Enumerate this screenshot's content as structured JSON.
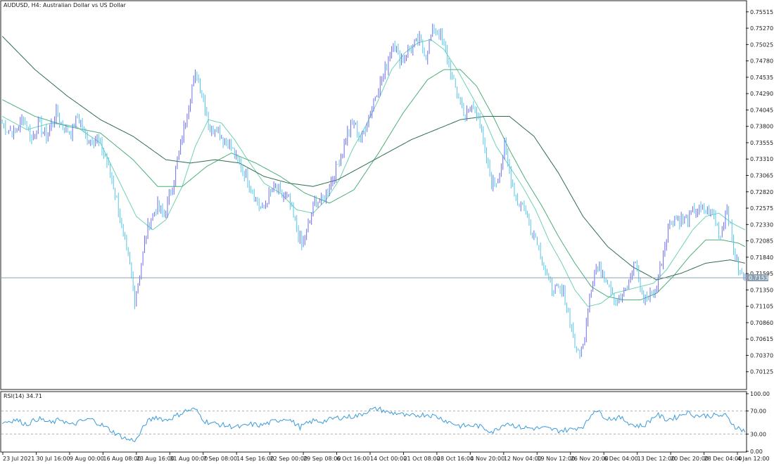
{
  "chart_data": [
    {
      "type": "candlestick",
      "title": "AUDUSD, H4:  Australian Dollar vs US Dollar",
      "ylim": [
        0.6988,
        0.7565
      ],
      "y_ticks": [
        "0.75515",
        "0.75270",
        "0.75025",
        "0.74780",
        "0.74535",
        "0.74290",
        "0.74045",
        "0.73800",
        "0.73555",
        "0.73310",
        "0.73065",
        "0.72820",
        "0.72575",
        "0.72330",
        "0.72085",
        "0.71840",
        "0.71595",
        "0.71350",
        "0.71105",
        "0.70860",
        "0.70615",
        "0.70370",
        "0.70125"
      ],
      "x_ticks": [
        "23 Jul 2021",
        "30 Jul 16:00",
        "9 Aug 00:00",
        "16 Aug 08:00",
        "23 Aug 16:00",
        "31 Aug 00:00",
        "7 Sep 08:00",
        "14 Sep 16:00",
        "22 Sep 00:00",
        "29 Sep 08:00",
        "6 Oct 16:00",
        "14 Oct 00:00",
        "21 Oct 08:00",
        "28 Oct 16:00",
        "4 Nov 20:00",
        "12 Nov 04:00",
        "19 Nov 12:00",
        "26 Nov 20:00",
        "6 Dec 04:00",
        "13 Dec 12:00",
        "20 Dec 20:00",
        "28 Dec 04:00",
        "4 Jan 12:00"
      ],
      "current_price": "0.71532",
      "price_keypoints": [
        [
          0,
          0.7385
        ],
        [
          3,
          0.7375
        ],
        [
          8,
          0.737
        ],
        [
          13,
          0.7395
        ],
        [
          18,
          0.736
        ],
        [
          22,
          0.7385
        ],
        [
          27,
          0.7365
        ],
        [
          33,
          0.74
        ],
        [
          37,
          0.738
        ],
        [
          42,
          0.737
        ],
        [
          46,
          0.7395
        ],
        [
          52,
          0.736
        ],
        [
          58,
          0.736
        ],
        [
          63,
          0.7335
        ],
        [
          66,
          0.731
        ],
        [
          70,
          0.727
        ],
        [
          74,
          0.7215
        ],
        [
          78,
          0.717
        ],
        [
          81,
          0.712
        ],
        [
          84,
          0.716
        ],
        [
          87,
          0.7205
        ],
        [
          90,
          0.724
        ],
        [
          95,
          0.726
        ],
        [
          99,
          0.7245
        ],
        [
          104,
          0.729
        ],
        [
          108,
          0.734
        ],
        [
          112,
          0.739
        ],
        [
          116,
          0.744
        ],
        [
          119,
          0.746
        ],
        [
          123,
          0.742
        ],
        [
          127,
          0.7375
        ],
        [
          131,
          0.738
        ],
        [
          135,
          0.736
        ],
        [
          139,
          0.7355
        ],
        [
          143,
          0.733
        ],
        [
          147,
          0.7315
        ],
        [
          151,
          0.7295
        ],
        [
          155,
          0.727
        ],
        [
          159,
          0.7255
        ],
        [
          163,
          0.7275
        ],
        [
          167,
          0.729
        ],
        [
          171,
          0.7275
        ],
        [
          175,
          0.727
        ],
        [
          179,
          0.7235
        ],
        [
          183,
          0.72
        ],
        [
          187,
          0.723
        ],
        [
          191,
          0.7265
        ],
        [
          195,
          0.727
        ],
        [
          199,
          0.7285
        ],
        [
          203,
          0.731
        ],
        [
          207,
          0.7335
        ],
        [
          211,
          0.737
        ],
        [
          215,
          0.7385
        ],
        [
          219,
          0.736
        ],
        [
          223,
          0.7385
        ],
        [
          227,
          0.742
        ],
        [
          231,
          0.7445
        ],
        [
          235,
          0.747
        ],
        [
          239,
          0.751
        ],
        [
          243,
          0.748
        ],
        [
          247,
          0.749
        ],
        [
          251,
          0.75
        ],
        [
          255,
          0.751
        ],
        [
          259,
          0.7485
        ],
        [
          263,
          0.7525
        ],
        [
          267,
          0.752
        ],
        [
          271,
          0.7495
        ],
        [
          275,
          0.745
        ],
        [
          279,
          0.7425
        ],
        [
          283,
          0.7395
        ],
        [
          287,
          0.741
        ],
        [
          291,
          0.74
        ],
        [
          295,
          0.734
        ],
        [
          299,
          0.7295
        ],
        [
          303,
          0.73
        ],
        [
          307,
          0.735
        ],
        [
          311,
          0.73
        ],
        [
          315,
          0.7265
        ],
        [
          319,
          0.726
        ],
        [
          323,
          0.7225
        ],
        [
          327,
          0.721
        ],
        [
          331,
          0.717
        ],
        [
          335,
          0.714
        ],
        [
          339,
          0.7135
        ],
        [
          343,
          0.713
        ],
        [
          347,
          0.709
        ],
        [
          351,
          0.704
        ],
        [
          355,
          0.705
        ],
        [
          359,
          0.713
        ],
        [
          363,
          0.717
        ],
        [
          367,
          0.716
        ],
        [
          371,
          0.7145
        ],
        [
          375,
          0.712
        ],
        [
          379,
          0.7125
        ],
        [
          383,
          0.7145
        ],
        [
          387,
          0.718
        ],
        [
          391,
          0.7125
        ],
        [
          395,
          0.7125
        ],
        [
          399,
          0.713
        ],
        [
          403,
          0.718
        ],
        [
          407,
          0.723
        ],
        [
          411,
          0.7245
        ],
        [
          415,
          0.724
        ],
        [
          419,
          0.724
        ],
        [
          423,
          0.7255
        ],
        [
          427,
          0.7255
        ],
        [
          431,
          0.7255
        ],
        [
          435,
          0.7245
        ],
        [
          439,
          0.7215
        ],
        [
          443,
          0.726
        ],
        [
          447,
          0.7195
        ],
        [
          451,
          0.716
        ],
        [
          454,
          0.7153
        ]
      ],
      "series": [
        {
          "name": "",
          "color": "#6ed3b0",
          "keypoints": [
            [
              0,
              0.7395
            ],
            [
              15,
              0.7375
            ],
            [
              30,
              0.7385
            ],
            [
              45,
              0.738
            ],
            [
              60,
              0.7355
            ],
            [
              72,
              0.7295
            ],
            [
              82,
              0.7245
            ],
            [
              92,
              0.7225
            ],
            [
              100,
              0.724
            ],
            [
              110,
              0.729
            ],
            [
              118,
              0.735
            ],
            [
              126,
              0.739
            ],
            [
              134,
              0.7385
            ],
            [
              142,
              0.736
            ],
            [
              150,
              0.733
            ],
            [
              160,
              0.7295
            ],
            [
              170,
              0.728
            ],
            [
              180,
              0.7255
            ],
            [
              190,
              0.725
            ],
            [
              198,
              0.727
            ],
            [
              206,
              0.73
            ],
            [
              214,
              0.7345
            ],
            [
              222,
              0.738
            ],
            [
              230,
              0.742
            ],
            [
              238,
              0.7465
            ],
            [
              246,
              0.749
            ],
            [
              254,
              0.7505
            ],
            [
              262,
              0.751
            ],
            [
              270,
              0.7495
            ],
            [
              278,
              0.7465
            ],
            [
              286,
              0.743
            ],
            [
              294,
              0.7395
            ],
            [
              302,
              0.735
            ],
            [
              310,
              0.732
            ],
            [
              318,
              0.729
            ],
            [
              326,
              0.7255
            ],
            [
              334,
              0.721
            ],
            [
              342,
              0.7175
            ],
            [
              350,
              0.7135
            ],
            [
              358,
              0.711
            ],
            [
              366,
              0.7115
            ],
            [
              374,
              0.713
            ],
            [
              382,
              0.7135
            ],
            [
              390,
              0.714
            ],
            [
              398,
              0.7145
            ],
            [
              406,
              0.7165
            ],
            [
              414,
              0.7195
            ],
            [
              422,
              0.7225
            ],
            [
              430,
              0.7245
            ],
            [
              438,
              0.725
            ],
            [
              446,
              0.7235
            ],
            [
              454,
              0.7225
            ]
          ]
        },
        {
          "name": "",
          "color": "#4caf78",
          "keypoints": [
            [
              0,
              0.742
            ],
            [
              20,
              0.7395
            ],
            [
              40,
              0.738
            ],
            [
              60,
              0.737
            ],
            [
              80,
              0.733
            ],
            [
              95,
              0.729
            ],
            [
              110,
              0.729
            ],
            [
              125,
              0.732
            ],
            [
              140,
              0.734
            ],
            [
              155,
              0.7325
            ],
            [
              170,
              0.7305
            ],
            [
              185,
              0.728
            ],
            [
              200,
              0.7265
            ],
            [
              215,
              0.7285
            ],
            [
              230,
              0.734
            ],
            [
              245,
              0.74
            ],
            [
              260,
              0.745
            ],
            [
              270,
              0.7465
            ],
            [
              280,
              0.7465
            ],
            [
              290,
              0.744
            ],
            [
              300,
              0.7395
            ],
            [
              310,
              0.7345
            ],
            [
              320,
              0.73
            ],
            [
              330,
              0.726
            ],
            [
              340,
              0.7215
            ],
            [
              350,
              0.7175
            ],
            [
              360,
              0.714
            ],
            [
              370,
              0.7125
            ],
            [
              380,
              0.712
            ],
            [
              390,
              0.712
            ],
            [
              400,
              0.713
            ],
            [
              410,
              0.7155
            ],
            [
              420,
              0.7185
            ],
            [
              430,
              0.721
            ],
            [
              440,
              0.721
            ],
            [
              450,
              0.7205
            ],
            [
              454,
              0.72
            ]
          ]
        },
        {
          "name": "",
          "color": "#2f6e4f",
          "keypoints": [
            [
              0,
              0.7515
            ],
            [
              20,
              0.7465
            ],
            [
              40,
              0.7425
            ],
            [
              60,
              0.739
            ],
            [
              80,
              0.7365
            ],
            [
              100,
              0.733
            ],
            [
              115,
              0.7325
            ],
            [
              130,
              0.733
            ],
            [
              145,
              0.7325
            ],
            [
              160,
              0.7305
            ],
            [
              175,
              0.7295
            ],
            [
              190,
              0.729
            ],
            [
              205,
              0.73
            ],
            [
              220,
              0.732
            ],
            [
              235,
              0.734
            ],
            [
              250,
              0.736
            ],
            [
              265,
              0.7375
            ],
            [
              280,
              0.739
            ],
            [
              295,
              0.7395
            ],
            [
              310,
              0.7395
            ],
            [
              325,
              0.7365
            ],
            [
              340,
              0.731
            ],
            [
              355,
              0.7245
            ],
            [
              370,
              0.72
            ],
            [
              385,
              0.717
            ],
            [
              400,
              0.715
            ],
            [
              415,
              0.716
            ],
            [
              430,
              0.7175
            ],
            [
              445,
              0.718
            ],
            [
              454,
              0.7175
            ]
          ]
        }
      ]
    },
    {
      "type": "line",
      "title": "RSI(14) 34.71",
      "ylim": [
        0,
        100
      ],
      "y_ticks": [
        "100.00",
        "70.00",
        "30.00",
        "0.00"
      ],
      "levels": [
        70,
        30
      ],
      "color": "#3a9bdc",
      "keypoints": [
        [
          0,
          50
        ],
        [
          8,
          55
        ],
        [
          15,
          47
        ],
        [
          22,
          57
        ],
        [
          30,
          49
        ],
        [
          36,
          56
        ],
        [
          42,
          45
        ],
        [
          48,
          52
        ],
        [
          54,
          56
        ],
        [
          62,
          44
        ],
        [
          70,
          30
        ],
        [
          77,
          20
        ],
        [
          82,
          20
        ],
        [
          88,
          50
        ],
        [
          94,
          60
        ],
        [
          100,
          54
        ],
        [
          106,
          61
        ],
        [
          112,
          70
        ],
        [
          118,
          73
        ],
        [
          124,
          52
        ],
        [
          130,
          48
        ],
        [
          138,
          44
        ],
        [
          146,
          42
        ],
        [
          152,
          47
        ],
        [
          158,
          45
        ],
        [
          166,
          52
        ],
        [
          174,
          58
        ],
        [
          182,
          42
        ],
        [
          190,
          53
        ],
        [
          196,
          52
        ],
        [
          204,
          58
        ],
        [
          212,
          60
        ],
        [
          218,
          62
        ],
        [
          224,
          71
        ],
        [
          230,
          74
        ],
        [
          236,
          67
        ],
        [
          242,
          66
        ],
        [
          248,
          60
        ],
        [
          254,
          63
        ],
        [
          260,
          64
        ],
        [
          266,
          60
        ],
        [
          272,
          52
        ],
        [
          280,
          44
        ],
        [
          290,
          45
        ],
        [
          300,
          34
        ],
        [
          308,
          50
        ],
        [
          316,
          42
        ],
        [
          324,
          40
        ],
        [
          332,
          40
        ],
        [
          340,
          36
        ],
        [
          348,
          38
        ],
        [
          356,
          45
        ],
        [
          362,
          73
        ],
        [
          370,
          57
        ],
        [
          378,
          58
        ],
        [
          386,
          45
        ],
        [
          392,
          44
        ],
        [
          400,
          64
        ],
        [
          406,
          55
        ],
        [
          412,
          59
        ],
        [
          418,
          68
        ],
        [
          424,
          62
        ],
        [
          430,
          62
        ],
        [
          436,
          62
        ],
        [
          442,
          62
        ],
        [
          448,
          43
        ],
        [
          454,
          35
        ]
      ]
    }
  ]
}
